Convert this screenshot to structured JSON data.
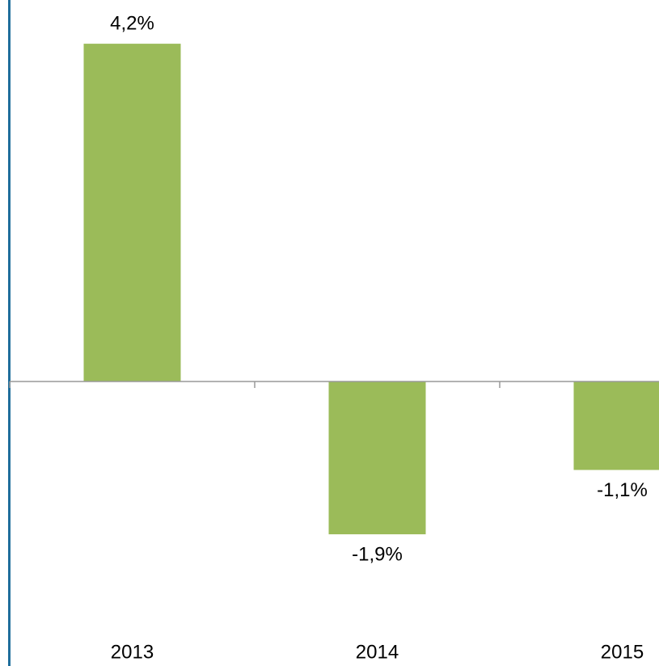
{
  "chart_data": {
    "type": "bar",
    "categories": [
      "2013",
      "2014",
      "2015"
    ],
    "values": [
      4.2,
      -1.9,
      -1.1
    ],
    "value_labels": [
      "4,2%",
      "-1,9%",
      "-1,1%"
    ],
    "color": "#9bbb59"
  }
}
